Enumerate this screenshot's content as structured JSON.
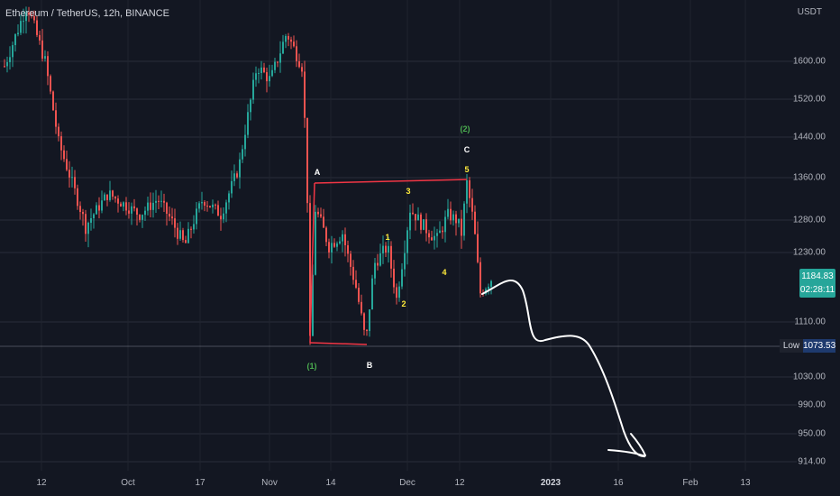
{
  "header": {
    "title": "Ethereum / TetherUS, 12h, BINANCE",
    "unit": "USDT"
  },
  "price": {
    "current": "1184.83",
    "countdown": "02:28:11",
    "low_label": "Low",
    "low_value": "1073.53"
  },
  "colors": {
    "background": "#131722",
    "up": "#26a69a",
    "down": "#ef5350",
    "annotation_line": "#f23645",
    "wave_green": "#4caf50",
    "wave_yellow": "#ffeb3b",
    "wave_white": "#ffffff",
    "forecast": "#ffffff"
  },
  "chart_data": {
    "type": "candlestick",
    "symbol": "Ethereum / TetherUS",
    "interval": "12h",
    "exchange": "BINANCE",
    "y_axis": {
      "labels": [
        "1600.00",
        "1520.00",
        "1440.00",
        "1360.00",
        "1280.00",
        "1230.00",
        "1110.00",
        "1030.00",
        "990.00",
        "950.00",
        "914.00"
      ],
      "values": [
        1600,
        1520,
        1440,
        1360,
        1280,
        1230,
        1110,
        1030,
        990,
        950,
        914
      ]
    },
    "x_axis": {
      "labels": [
        "12",
        "Oct",
        "17",
        "Nov",
        "14",
        "Dec",
        "12",
        "2023",
        "16",
        "Feb",
        "13"
      ],
      "bold": [
        "2023"
      ]
    },
    "grid": true,
    "waves": [
      {
        "label": "A",
        "color": "white"
      },
      {
        "label": "B",
        "color": "white"
      },
      {
        "label": "C",
        "color": "white"
      },
      {
        "label": "(1)",
        "color": "green"
      },
      {
        "label": "(2)",
        "color": "green"
      },
      {
        "label": "1",
        "color": "yellow"
      },
      {
        "label": "2",
        "color": "yellow"
      },
      {
        "label": "3",
        "color": "yellow"
      },
      {
        "label": "4",
        "color": "yellow"
      },
      {
        "label": "5",
        "color": "yellow"
      }
    ],
    "keyframes": [
      {
        "x": 5,
        "price": 1590
      },
      {
        "x": 30,
        "price": 1720
      },
      {
        "x": 50,
        "price": 1600
      },
      {
        "x": 65,
        "price": 1430
      },
      {
        "x": 95,
        "price": 1270
      },
      {
        "x": 120,
        "price": 1330
      },
      {
        "x": 155,
        "price": 1290
      },
      {
        "x": 175,
        "price": 1320
      },
      {
        "x": 205,
        "price": 1240
      },
      {
        "x": 225,
        "price": 1320
      },
      {
        "x": 245,
        "price": 1290
      },
      {
        "x": 265,
        "price": 1380
      },
      {
        "x": 285,
        "price": 1590
      },
      {
        "x": 300,
        "price": 1560
      },
      {
        "x": 318,
        "price": 1660
      },
      {
        "x": 335,
        "price": 1590
      },
      {
        "x": 340,
        "price": 1400
      },
      {
        "x": 344,
        "price": 1080
      },
      {
        "x": 350,
        "price": 1300
      },
      {
        "x": 365,
        "price": 1240
      },
      {
        "x": 380,
        "price": 1260
      },
      {
        "x": 395,
        "price": 1170
      },
      {
        "x": 406,
        "price": 1077
      },
      {
        "x": 415,
        "price": 1210
      },
      {
        "x": 430,
        "price": 1240
      },
      {
        "x": 440,
        "price": 1150
      },
      {
        "x": 455,
        "price": 1300
      },
      {
        "x": 470,
        "price": 1270
      },
      {
        "x": 485,
        "price": 1250
      },
      {
        "x": 497,
        "price": 1290
      },
      {
        "x": 507,
        "price": 1280
      },
      {
        "x": 512,
        "price": 1260
      },
      {
        "x": 518,
        "price": 1350
      },
      {
        "x": 526,
        "price": 1270
      },
      {
        "x": 533,
        "price": 1160
      },
      {
        "x": 545,
        "price": 1184
      }
    ]
  }
}
